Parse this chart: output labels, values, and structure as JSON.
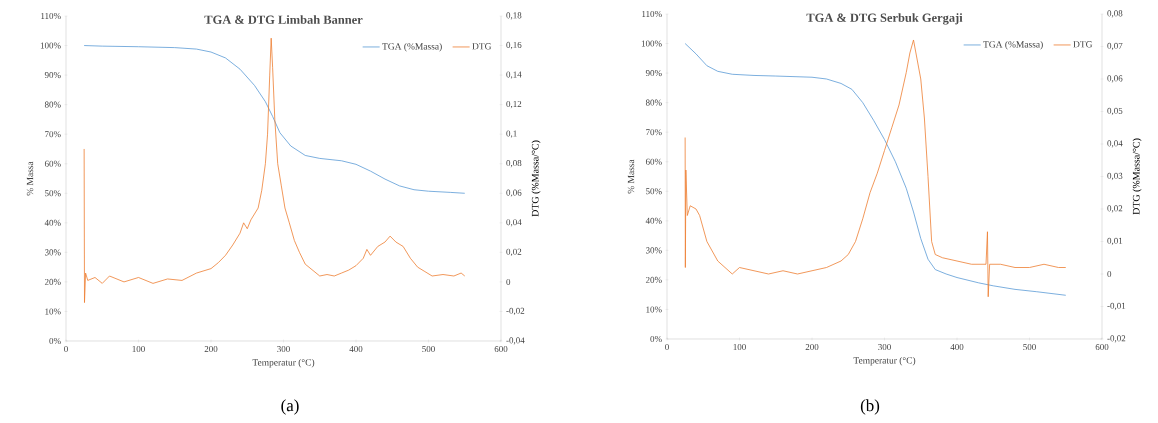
{
  "chart_data": [
    {
      "type": "line",
      "title": "TGA & DTG Limbah Banner",
      "xlabel": "Temperatur (°C)",
      "ylabel": "% Massa",
      "y2label": "DTG (%Massa/°C)",
      "legend": "top right",
      "marker": "none",
      "annotations": [
        "(a)"
      ],
      "xlim": [
        0,
        600
      ],
      "xticks": [
        0,
        100,
        200,
        300,
        400,
        500,
        600
      ],
      "ylim": [
        0,
        110
      ],
      "yticks": [
        {
          "value": 0,
          "label": "0%"
        },
        {
          "value": 10,
          "label": "10%"
        },
        {
          "value": 20,
          "label": "20%"
        },
        {
          "value": 30,
          "label": "30%"
        },
        {
          "value": 40,
          "label": "40%"
        },
        {
          "value": 50,
          "label": "50%"
        },
        {
          "value": 60,
          "label": "60%"
        },
        {
          "value": 70,
          "label": "70%"
        },
        {
          "value": 80,
          "label": "80%"
        },
        {
          "value": 90,
          "label": "90%"
        },
        {
          "value": 100,
          "label": "100%"
        },
        {
          "value": 110,
          "label": "110%"
        }
      ],
      "y2lim": [
        -0.04,
        0.18
      ],
      "y2ticks": [
        {
          "value": -0.04,
          "label": "-0,04"
        },
        {
          "value": -0.02,
          "label": "-0,02"
        },
        0,
        {
          "value": 0.02,
          "label": "0,02"
        },
        {
          "value": 0.04,
          "label": "0,04"
        },
        {
          "value": 0.06,
          "label": "0,06"
        },
        {
          "value": 0.08,
          "label": "0,08"
        },
        {
          "value": 0.1,
          "label": "0,1"
        },
        {
          "value": 0.12,
          "label": "0,12"
        },
        {
          "value": 0.14,
          "label": "0,14"
        },
        {
          "value": 0.16,
          "label": "0,16"
        },
        {
          "value": 0.18,
          "label": "0,18"
        }
      ],
      "series": [
        {
          "name": "TGA (%Massa)",
          "color": "#5b9bd5",
          "x": [
            25,
            50,
            100,
            150,
            180,
            200,
            220,
            240,
            260,
            275,
            285,
            295,
            310,
            330,
            350,
            380,
            400,
            420,
            440,
            460,
            480,
            500,
            530,
            550
          ],
          "values": [
            100,
            99.8,
            99.6,
            99.3,
            98.8,
            97.8,
            95.8,
            92,
            86.5,
            81,
            76,
            70.5,
            66,
            62.8,
            61.8,
            61,
            59.8,
            57.5,
            54.8,
            52.5,
            51.2,
            50.7,
            50.3,
            50
          ]
        },
        {
          "name": "DTG",
          "color": "#ed7d31",
          "axis": "y2",
          "x": [
            25,
            25.5,
            27,
            30,
            40,
            50,
            60,
            80,
            100,
            120,
            140,
            160,
            180,
            200,
            210,
            220,
            230,
            240,
            245,
            250,
            255,
            260,
            265,
            270,
            275,
            278,
            281,
            283,
            285,
            288,
            292,
            297,
            302,
            308,
            315,
            322,
            330,
            340,
            350,
            360,
            370,
            380,
            390,
            400,
            410,
            415,
            420,
            430,
            440,
            447,
            455,
            465,
            475,
            485,
            495,
            505,
            520,
            535,
            545,
            550
          ],
          "values": [
            0.09,
            -0.014,
            0.006,
            0.001,
            0.003,
            -0.001,
            0.004,
            0.0,
            0.003,
            -0.001,
            0.002,
            0.001,
            0.006,
            0.009,
            0.013,
            0.018,
            0.025,
            0.033,
            0.04,
            0.036,
            0.042,
            0.046,
            0.05,
            0.062,
            0.08,
            0.1,
            0.14,
            0.165,
            0.145,
            0.11,
            0.08,
            0.065,
            0.05,
            0.04,
            0.028,
            0.02,
            0.012,
            0.008,
            0.004,
            0.005,
            0.004,
            0.006,
            0.008,
            0.011,
            0.016,
            0.022,
            0.018,
            0.024,
            0.027,
            0.031,
            0.027,
            0.024,
            0.016,
            0.01,
            0.007,
            0.004,
            0.005,
            0.004,
            0.006,
            0.004
          ]
        }
      ]
    },
    {
      "type": "line",
      "title": "TGA & DTG Serbuk Gergaji",
      "xlabel": "Temperatur (°C)",
      "ylabel": "% Massa",
      "y2label": "DTG (%Massa/°C)",
      "legend": "top right",
      "marker": "none",
      "annotations": [
        "(b)"
      ],
      "xlim": [
        0,
        600
      ],
      "xticks": [
        0,
        100,
        200,
        300,
        400,
        500,
        600
      ],
      "ylim": [
        0,
        110
      ],
      "yticks": [
        {
          "value": 0,
          "label": "0%"
        },
        {
          "value": 10,
          "label": "10%"
        },
        {
          "value": 20,
          "label": "20%"
        },
        {
          "value": 30,
          "label": "30%"
        },
        {
          "value": 40,
          "label": "40%"
        },
        {
          "value": 50,
          "label": "50%"
        },
        {
          "value": 60,
          "label": "60%"
        },
        {
          "value": 70,
          "label": "70%"
        },
        {
          "value": 80,
          "label": "80%"
        },
        {
          "value": 90,
          "label": "90%"
        },
        {
          "value": 100,
          "label": "100%"
        },
        {
          "value": 110,
          "label": "110%"
        }
      ],
      "y2lim": [
        -0.02,
        0.08
      ],
      "y2ticks": [
        {
          "value": -0.02,
          "label": "-0,02"
        },
        {
          "value": -0.01,
          "label": "-0,01"
        },
        0,
        {
          "value": 0.01,
          "label": "0,01"
        },
        {
          "value": 0.02,
          "label": "0,02"
        },
        {
          "value": 0.03,
          "label": "0,03"
        },
        {
          "value": 0.04,
          "label": "0,04"
        },
        {
          "value": 0.05,
          "label": "0,05"
        },
        {
          "value": 0.06,
          "label": "0,06"
        },
        {
          "value": 0.07,
          "label": "0,07"
        },
        {
          "value": 0.08,
          "label": "0,08"
        }
      ],
      "series": [
        {
          "name": "TGA (%Massa)",
          "color": "#5b9bd5",
          "x": [
            25,
            40,
            55,
            70,
            90,
            120,
            150,
            200,
            220,
            240,
            255,
            270,
            285,
            300,
            315,
            330,
            340,
            350,
            360,
            370,
            385,
            400,
            430,
            450,
            480,
            510,
            550
          ],
          "values": [
            100,
            96.5,
            92.5,
            90.6,
            89.6,
            89.2,
            89,
            88.6,
            88,
            86.5,
            84.5,
            80,
            74,
            67.5,
            60,
            51,
            43,
            34,
            27,
            23.5,
            22,
            20.8,
            19,
            18,
            16.8,
            16,
            14.8
          ]
        },
        {
          "name": "DTG",
          "color": "#ed7d31",
          "axis": "y2",
          "x": [
            25,
            25.3,
            26,
            28,
            32,
            40,
            45,
            50,
            55,
            60,
            70,
            80,
            90,
            100,
            120,
            140,
            160,
            180,
            200,
            220,
            240,
            250,
            260,
            270,
            280,
            290,
            300,
            310,
            320,
            330,
            335,
            340,
            345,
            350,
            355,
            360,
            365,
            370,
            380,
            400,
            420,
            440,
            442,
            443,
            445,
            460,
            480,
            500,
            520,
            540,
            550
          ],
          "values": [
            0.042,
            0.002,
            0.032,
            0.018,
            0.021,
            0.02,
            0.018,
            0.014,
            0.01,
            0.008,
            0.004,
            0.002,
            0.0,
            0.002,
            0.001,
            0.0,
            0.001,
            0.0,
            0.001,
            0.002,
            0.004,
            0.006,
            0.01,
            0.017,
            0.025,
            0.031,
            0.038,
            0.045,
            0.052,
            0.062,
            0.068,
            0.072,
            0.066,
            0.06,
            0.048,
            0.03,
            0.01,
            0.006,
            0.005,
            0.004,
            0.003,
            0.003,
            0.013,
            -0.007,
            0.003,
            0.003,
            0.002,
            0.002,
            0.003,
            0.002,
            0.002
          ]
        }
      ]
    }
  ]
}
